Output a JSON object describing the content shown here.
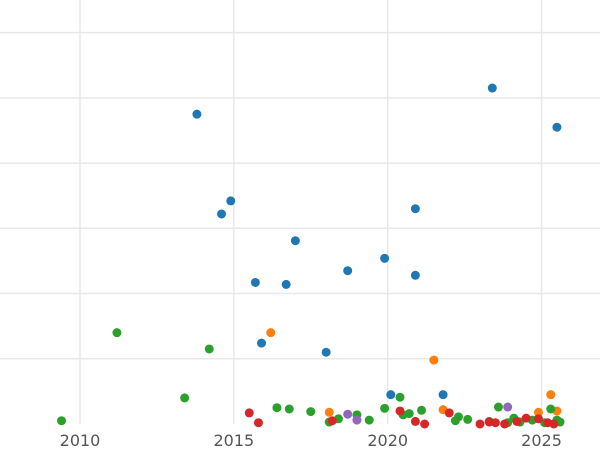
{
  "chart_data": {
    "type": "scatter",
    "title": "",
    "xlabel": "",
    "ylabel": "",
    "x_ticks": [
      2010,
      2015,
      2020,
      2025
    ],
    "xlim": [
      2007.4,
      2026.9
    ],
    "ylim": [
      0,
      6.5
    ],
    "y_grid_values": [
      1,
      2,
      3,
      4,
      5,
      6
    ],
    "grid": true,
    "legend": "none",
    "series": [
      {
        "color": "#1f77b4",
        "points": [
          [
            2013.8,
            4.75
          ],
          [
            2014.6,
            3.22
          ],
          [
            2014.9,
            3.42
          ],
          [
            2015.7,
            2.17
          ],
          [
            2015.9,
            1.24
          ],
          [
            2016.7,
            2.14
          ],
          [
            2017.0,
            2.81
          ],
          [
            2018.0,
            1.1
          ],
          [
            2018.7,
            2.35
          ],
          [
            2019.9,
            2.54
          ],
          [
            2020.1,
            0.45
          ],
          [
            2020.9,
            3.3
          ],
          [
            2020.9,
            2.28
          ],
          [
            2021.8,
            0.45
          ],
          [
            2023.4,
            5.15
          ],
          [
            2025.5,
            4.55
          ]
        ]
      },
      {
        "color": "#ff7f0e",
        "points": [
          [
            2016.2,
            1.4
          ],
          [
            2018.1,
            0.18
          ],
          [
            2021.5,
            0.98
          ],
          [
            2021.8,
            0.22
          ],
          [
            2024.9,
            0.18
          ],
          [
            2025.3,
            0.45
          ],
          [
            2025.5,
            0.2
          ]
        ]
      },
      {
        "color": "#2ca02c",
        "points": [
          [
            2009.4,
            0.05
          ],
          [
            2011.2,
            1.4
          ],
          [
            2013.4,
            0.4
          ],
          [
            2014.2,
            1.15
          ],
          [
            2016.4,
            0.25
          ],
          [
            2016.8,
            0.23
          ],
          [
            2017.5,
            0.19
          ],
          [
            2018.1,
            0.03
          ],
          [
            2018.4,
            0.08
          ],
          [
            2019.0,
            0.14
          ],
          [
            2019.4,
            0.06
          ],
          [
            2019.9,
            0.24
          ],
          [
            2020.4,
            0.41
          ],
          [
            2020.5,
            0.14
          ],
          [
            2020.7,
            0.16
          ],
          [
            2021.1,
            0.21
          ],
          [
            2022.2,
            0.05
          ],
          [
            2022.3,
            0.11
          ],
          [
            2022.6,
            0.07
          ],
          [
            2023.3,
            0.04
          ],
          [
            2023.6,
            0.26
          ],
          [
            2023.9,
            0.02
          ],
          [
            2024.1,
            0.09
          ],
          [
            2024.3,
            0.03
          ],
          [
            2024.7,
            0.06
          ],
          [
            2025.1,
            0.02
          ],
          [
            2025.3,
            0.23
          ],
          [
            2025.5,
            0.06
          ],
          [
            2025.6,
            0.03
          ]
        ]
      },
      {
        "color": "#d62728",
        "points": [
          [
            2015.5,
            0.17
          ],
          [
            2015.8,
            0.02
          ],
          [
            2018.2,
            0.05
          ],
          [
            2020.4,
            0.2
          ],
          [
            2020.9,
            0.04
          ],
          [
            2021.2,
            0.0
          ],
          [
            2022.0,
            0.17
          ],
          [
            2023.0,
            0.0
          ],
          [
            2023.3,
            0.03
          ],
          [
            2023.5,
            0.02
          ],
          [
            2023.8,
            0.0
          ],
          [
            2024.2,
            0.04
          ],
          [
            2024.5,
            0.09
          ],
          [
            2024.9,
            0.08
          ],
          [
            2025.2,
            0.02
          ],
          [
            2025.4,
            0.0
          ]
        ]
      },
      {
        "color": "#9467bd",
        "points": [
          [
            2018.7,
            0.15
          ],
          [
            2019.0,
            0.06
          ],
          [
            2023.9,
            0.26
          ]
        ]
      }
    ]
  }
}
